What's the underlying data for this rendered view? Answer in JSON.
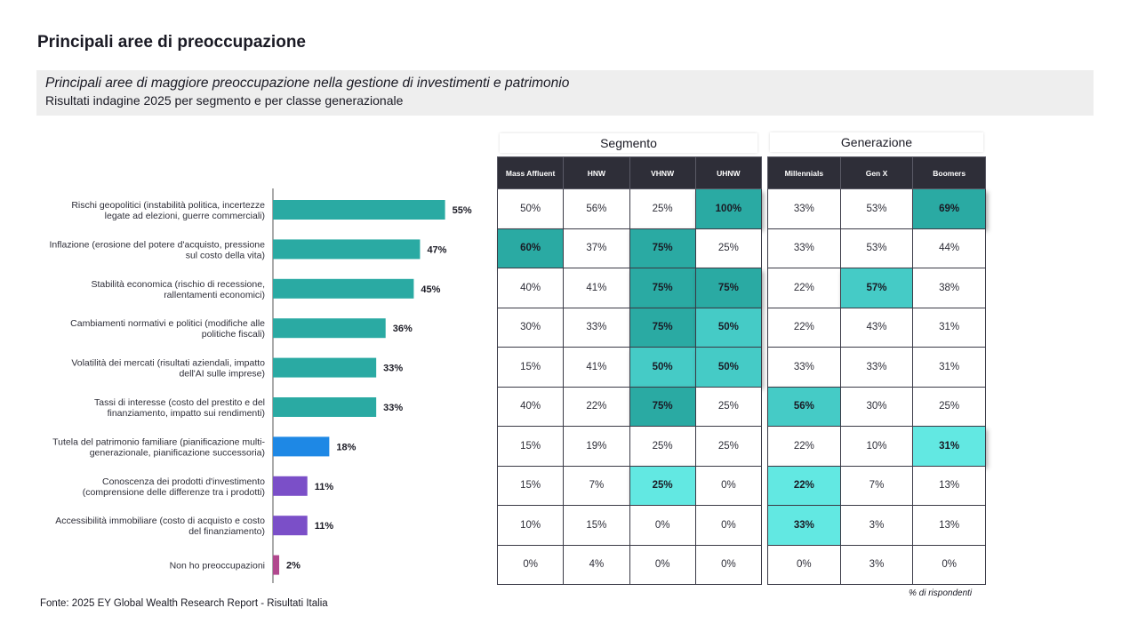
{
  "page_title": "Principali aree di preoccupazione",
  "subtitle": {
    "line1": "Principali aree di maggiore preoccupazione nella gestione di investimenti e patrimonio",
    "line2": "Risultati indagine 2025 per segmento e per classe generazionale"
  },
  "chart_data": {
    "type": "bar",
    "orientation": "horizontal",
    "categories": [
      [
        "Rischi geopolitici (instabilità politica, incertezze",
        "legate ad elezioni, guerre commerciali)"
      ],
      [
        "Inflazione (erosione del potere d'acquisto, pressione",
        "sul costo della vita)"
      ],
      [
        "Stabilità economica (rischio di recessione,",
        "rallentamenti economici)"
      ],
      [
        "Cambiamenti normativi e politici (modifiche alle",
        "politiche fiscali)"
      ],
      [
        "Volatilità dei mercati (risultati aziendali, impatto",
        "dell'AI sulle imprese)"
      ],
      [
        "Tassi di interesse (costo del prestito e del",
        "finanziamento, impatto sui rendimenti)"
      ],
      [
        "Tutela del patrimonio familiare (pianificazione multi-",
        "generazionale, pianificazione successoria)"
      ],
      [
        "Conoscenza dei prodotti d'investimento",
        "(comprensione delle differenze tra i prodotti)"
      ],
      [
        "Accessibilità immobiliare (costo di acquisto e costo",
        "del finanziamento)"
      ],
      [
        "Non ho preoccupazioni"
      ]
    ],
    "values": [
      55,
      47,
      45,
      36,
      33,
      33,
      18,
      11,
      11,
      2
    ],
    "value_labels": [
      "55%",
      "47%",
      "45%",
      "36%",
      "33%",
      "33%",
      "18%",
      "11%",
      "11%",
      "2%"
    ],
    "bar_colors": [
      "#2aaaa3",
      "#2aaaa3",
      "#2aaaa3",
      "#2aaaa3",
      "#2aaaa3",
      "#2aaaa3",
      "#1e88e5",
      "#7b4fc8",
      "#7b4fc8",
      "#b1488e"
    ],
    "xlim": [
      0,
      100
    ],
    "unit": "%"
  },
  "segmento": {
    "title": "Segmento",
    "columns": [
      "Mass Affluent",
      "HNW",
      "VHNW",
      "UHNW"
    ],
    "rows": [
      [
        "50%",
        "56%",
        "25%",
        "100%"
      ],
      [
        "60%",
        "37%",
        "75%",
        "25%"
      ],
      [
        "40%",
        "41%",
        "75%",
        "75%"
      ],
      [
        "30%",
        "33%",
        "75%",
        "50%"
      ],
      [
        "15%",
        "41%",
        "50%",
        "50%"
      ],
      [
        "40%",
        "22%",
        "75%",
        "25%"
      ],
      [
        "15%",
        "19%",
        "25%",
        "25%"
      ],
      [
        "15%",
        "7%",
        "25%",
        "0%"
      ],
      [
        "10%",
        "15%",
        "0%",
        "0%"
      ],
      [
        "0%",
        "4%",
        "0%",
        "0%"
      ]
    ],
    "highlight": [
      [
        "",
        "",
        "",
        "dark"
      ],
      [
        "dark",
        "",
        "dark",
        ""
      ],
      [
        "",
        "",
        "dark",
        "dark"
      ],
      [
        "",
        "",
        "dark",
        "mid"
      ],
      [
        "",
        "",
        "mid",
        "mid"
      ],
      [
        "",
        "",
        "dark",
        ""
      ],
      [
        "",
        "",
        "",
        ""
      ],
      [
        "",
        "",
        "light",
        ""
      ],
      [
        "",
        "",
        "",
        ""
      ],
      [
        "",
        "",
        "",
        ""
      ]
    ]
  },
  "generazione": {
    "title": "Generazione",
    "columns": [
      "Millennials",
      "Gen X",
      "Boomers"
    ],
    "rows": [
      [
        "33%",
        "53%",
        "69%"
      ],
      [
        "33%",
        "53%",
        "44%"
      ],
      [
        "22%",
        "57%",
        "38%"
      ],
      [
        "22%",
        "43%",
        "31%"
      ],
      [
        "33%",
        "33%",
        "31%"
      ],
      [
        "56%",
        "30%",
        "25%"
      ],
      [
        "22%",
        "10%",
        "31%"
      ],
      [
        "22%",
        "7%",
        "13%"
      ],
      [
        "33%",
        "3%",
        "13%"
      ],
      [
        "0%",
        "3%",
        "0%"
      ]
    ],
    "highlight": [
      [
        "",
        "",
        "dark"
      ],
      [
        "",
        "",
        ""
      ],
      [
        "",
        "mid",
        ""
      ],
      [
        "",
        "",
        ""
      ],
      [
        "",
        "",
        ""
      ],
      [
        "mid",
        "",
        ""
      ],
      [
        "",
        "",
        "light"
      ],
      [
        "light",
        "",
        ""
      ],
      [
        "light",
        "",
        ""
      ],
      [
        "",
        "",
        ""
      ]
    ]
  },
  "note": "% di rispondenti",
  "source": "Fonte: 2025 EY Global Wealth Research Report - Risultati Italia"
}
